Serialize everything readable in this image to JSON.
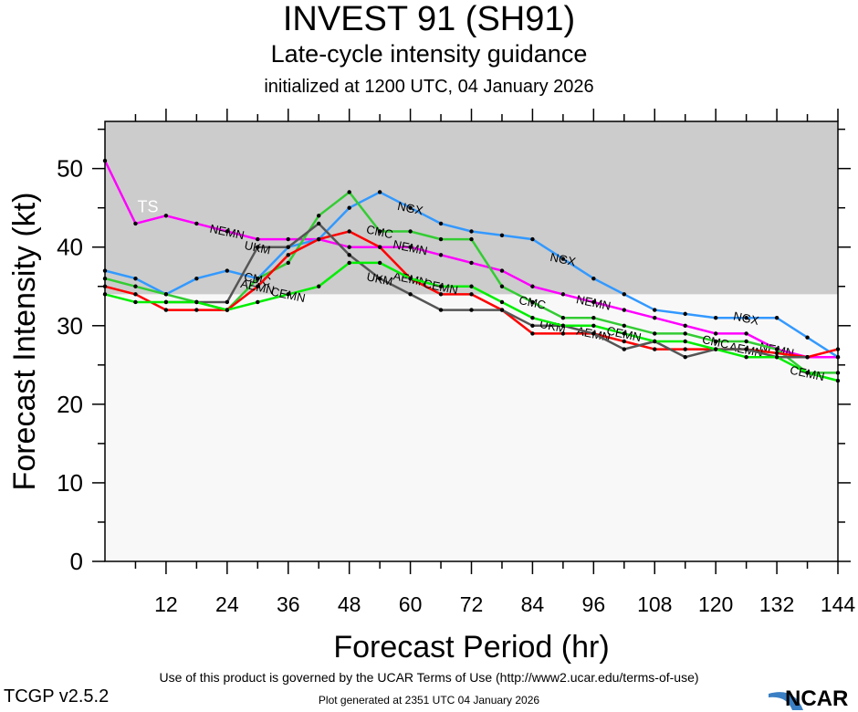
{
  "header": {
    "title": "INVEST 91 (SH91)",
    "subtitle": "Late-cycle intensity guidance",
    "init_line": "initialized at 1200 UTC, 04 January 2026"
  },
  "footer": {
    "terms": "Use of this product is governed by the UCAR Terms of Use (http://www2.ucar.edu/terms-of-use)",
    "version": "TCGP v2.5.2",
    "generated": "Plot generated at 2351 UTC   04 January 2026",
    "logo": "NCAR"
  },
  "chart_data": {
    "type": "line",
    "title": "INVEST 91 (SH91)",
    "xlabel": "Forecast Period (hr)",
    "ylabel": "Forecast Intensity (kt)",
    "xlim": [
      0,
      144
    ],
    "ylim": [
      0,
      56
    ],
    "xticks": [
      12,
      24,
      36,
      48,
      60,
      72,
      84,
      96,
      108,
      120,
      132,
      144
    ],
    "yticks": [
      0,
      10,
      20,
      30,
      40,
      50
    ],
    "threshold_band": {
      "label": "TS",
      "min": 34,
      "max": 56,
      "color": "#cccccc"
    },
    "below_band_color": "#f8f8f8",
    "x": [
      0,
      6,
      12,
      18,
      24,
      30,
      36,
      42,
      48,
      54,
      60,
      66,
      72,
      78,
      84,
      90,
      96,
      102,
      108,
      114,
      120,
      126,
      132,
      138,
      144
    ],
    "series": [
      {
        "name": "NEMN",
        "color": "#ff00ff",
        "label_at": [
          24,
          60,
          96,
          132
        ],
        "values": [
          51,
          43,
          44,
          43,
          42,
          41,
          41,
          41,
          40,
          40,
          40,
          39,
          38,
          37,
          35,
          34,
          33,
          32,
          31,
          30,
          29,
          29,
          27,
          26,
          26
        ]
      },
      {
        "name": "NGX",
        "color": "#3399ff",
        "label_at": [
          60,
          90,
          126
        ],
        "values": [
          37,
          36,
          34,
          36,
          37,
          36,
          40,
          41,
          45,
          47,
          45,
          43,
          42,
          41.5,
          41,
          38.5,
          36,
          34,
          32,
          31.5,
          31,
          31,
          31,
          28.5,
          26
        ]
      },
      {
        "name": "CMC",
        "color": "#33cc33",
        "label_at": [
          30,
          54,
          84,
          120
        ],
        "values": [
          36,
          35,
          34,
          33,
          32,
          36,
          38,
          44,
          47,
          42,
          42,
          41,
          41,
          35,
          33,
          31,
          31,
          30,
          29,
          29,
          28,
          28,
          27,
          24,
          24
        ]
      },
      {
        "name": "AEMN",
        "color": "#ff0000",
        "label_at": [
          30,
          60,
          96,
          126
        ],
        "values": [
          35,
          34,
          32,
          32,
          32,
          35,
          39,
          41,
          42,
          40,
          36,
          34,
          34,
          32,
          29,
          29,
          29,
          28,
          27,
          27,
          27,
          27,
          26.5,
          26,
          27
        ]
      },
      {
        "name": "UKM",
        "color": "#555555",
        "label_at": [
          30,
          54,
          88
        ],
        "values": [
          null,
          null,
          33,
          33,
          33,
          40,
          40,
          43,
          39,
          36,
          34,
          32,
          32,
          32,
          30,
          30,
          29,
          27,
          28,
          26,
          27,
          27,
          26,
          26,
          null
        ]
      },
      {
        "name": "CEMN",
        "color": "#00ee00",
        "label_at": [
          36,
          66,
          102,
          138
        ],
        "values": [
          34,
          33,
          33,
          33,
          32,
          33,
          34,
          35,
          38,
          38,
          36,
          35,
          35,
          33,
          31,
          30,
          30,
          29,
          28,
          28,
          27,
          26,
          26,
          24,
          23
        ]
      }
    ]
  }
}
